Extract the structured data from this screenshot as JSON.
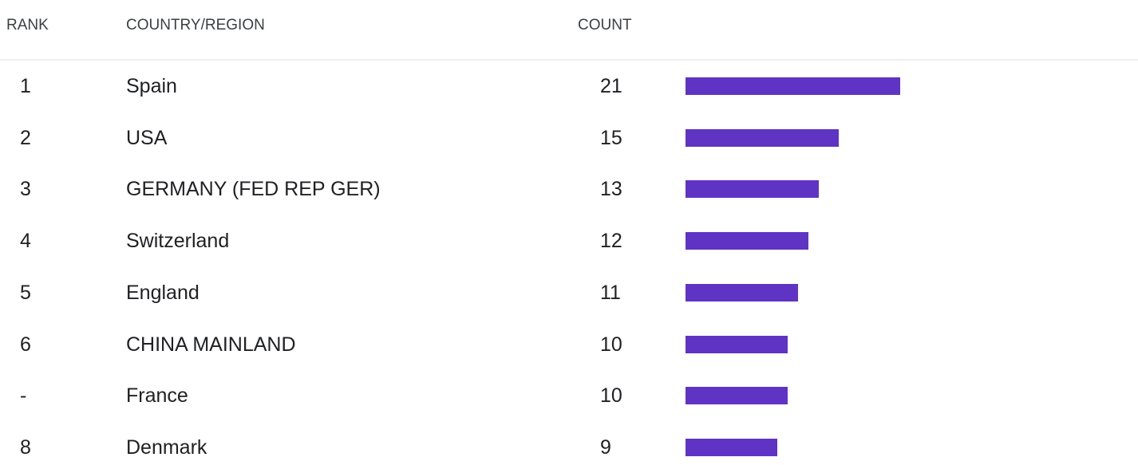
{
  "table": {
    "headers": {
      "rank": "RANK",
      "country": "COUNTRY/REGION",
      "count": "COUNT"
    },
    "bar_color": "#5f33c4",
    "rows": [
      {
        "rank": 1,
        "country": "Spain",
        "count": 21
      },
      {
        "rank": 2,
        "country": "USA",
        "count": 15
      },
      {
        "rank": 3,
        "country": "GERMANY (FED REP GER)",
        "count": 13
      },
      {
        "rank": 4,
        "country": "Switzerland",
        "count": 12
      },
      {
        "rank": 5,
        "country": "England",
        "count": 11
      },
      {
        "rank": 6,
        "country": "CHINA MAINLAND",
        "count": 10
      },
      {
        "rank": "-",
        "country": "France",
        "count": 10
      },
      {
        "rank": 8,
        "country": "Denmark",
        "count": 9
      }
    ]
  }
}
